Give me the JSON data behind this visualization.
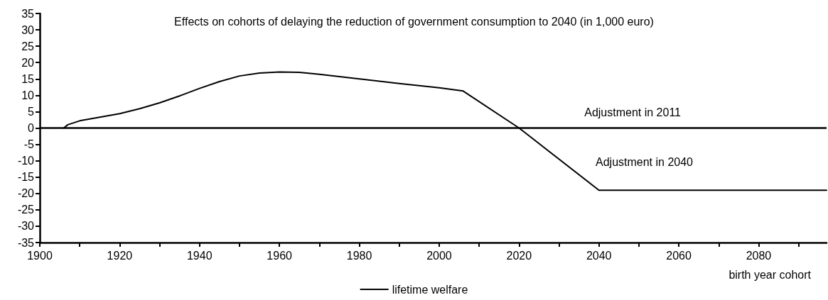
{
  "chart_data": {
    "type": "line",
    "title": "Effects on cohorts of delaying the reduction of government consumption to 2040 (in 1,000 euro)",
    "xlabel": "birth year cohort",
    "x": [
      1906,
      1907,
      1910,
      1915,
      1920,
      1925,
      1930,
      1935,
      1940,
      1945,
      1950,
      1955,
      1960,
      1965,
      1970,
      1980,
      1990,
      2000,
      2006,
      2020,
      2040,
      2097
    ],
    "series": [
      {
        "name": "lifetime welfare",
        "color": "#000000",
        "values": [
          0,
          1,
          2.2,
          3.3,
          4.4,
          5.9,
          7.7,
          9.8,
          12.1,
          14.2,
          15.9,
          16.8,
          17.1,
          17,
          16.4,
          15,
          13.6,
          12.3,
          11.3,
          0,
          -19,
          -19
        ]
      }
    ],
    "xlim": [
      1900,
      2097
    ],
    "xticks": [
      1900,
      {
        "value": 1910,
        "label": null
      },
      1920,
      {
        "value": 1930,
        "label": null
      },
      1940,
      {
        "value": 1950,
        "label": null
      },
      1960,
      {
        "value": 1970,
        "label": null
      },
      1980,
      {
        "value": 1990,
        "label": null
      },
      2000,
      {
        "value": 2010,
        "label": null
      },
      2020,
      {
        "value": 2030,
        "label": null
      },
      2040,
      {
        "value": 2050,
        "label": null
      },
      2060,
      {
        "value": 2070,
        "label": null
      },
      2080,
      {
        "value": 2090,
        "label": null
      }
    ],
    "ylim": [
      -35,
      35
    ],
    "yticks": [
      -35,
      -30,
      -25,
      -20,
      -15,
      -10,
      -5,
      0,
      5,
      10,
      15,
      20,
      25,
      30,
      35
    ],
    "ref_lines": [
      {
        "axis": "y",
        "value": 0,
        "label": "Adjustment in 2011",
        "color": "#000000"
      }
    ],
    "annotations": [
      "Adjustment in 2040"
    ],
    "grid": false,
    "legend": "bottom",
    "marker": "none",
    "line_style": "solid"
  }
}
